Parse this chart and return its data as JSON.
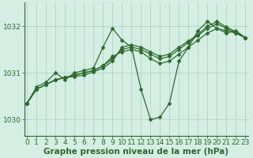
{
  "series": [
    [
      1030.35,
      1030.7,
      1030.8,
      1031.0,
      1030.85,
      1031.0,
      1031.05,
      1031.1,
      1031.55,
      1031.95,
      1031.7,
      1031.55,
      1030.65,
      1030.0,
      1030.05,
      1030.35,
      1031.25,
      1031.55,
      1031.9,
      1032.1,
      1031.95,
      1031.85,
      1031.9,
      1031.75
    ],
    [
      1030.35,
      1030.65,
      1030.75,
      1030.85,
      1030.9,
      1030.95,
      1031.0,
      1031.05,
      1031.15,
      1031.35,
      1031.45,
      1031.5,
      1031.45,
      1031.3,
      1031.2,
      1031.25,
      1031.4,
      1031.55,
      1031.7,
      1031.85,
      1031.95,
      1031.9,
      1031.85,
      1031.75
    ],
    [
      1030.35,
      1030.65,
      1030.75,
      1030.85,
      1030.9,
      1030.95,
      1031.0,
      1031.05,
      1031.15,
      1031.3,
      1031.5,
      1031.55,
      1031.5,
      1031.4,
      1031.3,
      1031.35,
      1031.5,
      1031.65,
      1031.8,
      1031.95,
      1032.05,
      1031.95,
      1031.85,
      1031.75
    ],
    [
      1030.35,
      1030.65,
      1030.75,
      1030.85,
      1030.9,
      1030.92,
      1030.95,
      1031.02,
      1031.1,
      1031.25,
      1031.55,
      1031.6,
      1031.55,
      1031.45,
      1031.35,
      1031.4,
      1031.55,
      1031.68,
      1031.82,
      1032.0,
      1032.1,
      1031.98,
      1031.88,
      1031.75
    ]
  ],
  "x": [
    0,
    1,
    2,
    3,
    4,
    5,
    6,
    7,
    8,
    9,
    10,
    11,
    12,
    13,
    14,
    15,
    16,
    17,
    18,
    19,
    20,
    21,
    22,
    23
  ],
  "line_color": "#2d6a2d",
  "marker_color": "#2d6a2d",
  "bg_color": "#d4eee4",
  "grid_color": "#b0d4c0",
  "axis_color": "#2d6a2d",
  "ylabel_left": [
    "1030",
    "1031",
    "1032"
  ],
  "yticks": [
    1030.0,
    1031.0,
    1032.0
  ],
  "ylim": [
    1029.65,
    1032.5
  ],
  "xlim": [
    -0.3,
    23.3
  ],
  "xlabel": "Graphe pression niveau de la mer (hPa)",
  "xticks": [
    0,
    1,
    2,
    3,
    4,
    5,
    6,
    7,
    8,
    9,
    10,
    11,
    12,
    13,
    14,
    15,
    16,
    17,
    18,
    19,
    20,
    21,
    22,
    23
  ],
  "font_size": 6.5,
  "label_font_size": 7.5
}
